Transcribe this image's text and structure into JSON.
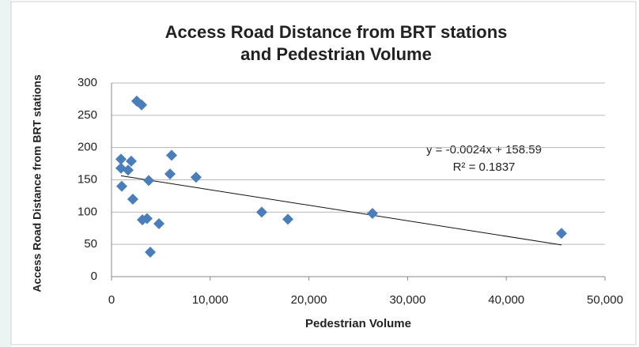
{
  "chart_data": {
    "type": "scatter",
    "title": "Access Road Distance from BRT stations",
    "subtitle": "and Pedestrian Volume",
    "x_label": "Pedestrian Volume",
    "y_label": "Access Road Distance from BRT stations",
    "x": [
      2560,
      3050,
      960,
      2000,
      960,
      1680,
      6090,
      5930,
      8570,
      3770,
      1040,
      2160,
      3130,
      3600,
      4810,
      3930,
      15220,
      17870,
      26440,
      45590
    ],
    "values": [
      272,
      266,
      182,
      179,
      168,
      165,
      188,
      159,
      154,
      149,
      140,
      120,
      88,
      90,
      82,
      38,
      100,
      89,
      98,
      67
    ],
    "color": "#4a7ebb",
    "xlim": [
      0,
      50000
    ],
    "xticks": [
      0,
      {
        "value": 10000,
        "label": "10,000"
      },
      {
        "value": 20000,
        "label": "20,000"
      },
      {
        "value": 30000,
        "label": "30,000"
      },
      {
        "value": 40000,
        "label": "40,000"
      },
      {
        "value": 50000,
        "label": "50,000"
      }
    ],
    "ylim": [
      0,
      300
    ],
    "yticks": [
      0,
      50,
      100,
      150,
      200,
      250,
      300
    ],
    "grid": true,
    "trendline": {
      "slope": -0.0024,
      "intercept": 158.59
    },
    "annotations": [
      "y = -0.0024x + 158.59",
      "R² = 0.1837"
    ]
  }
}
